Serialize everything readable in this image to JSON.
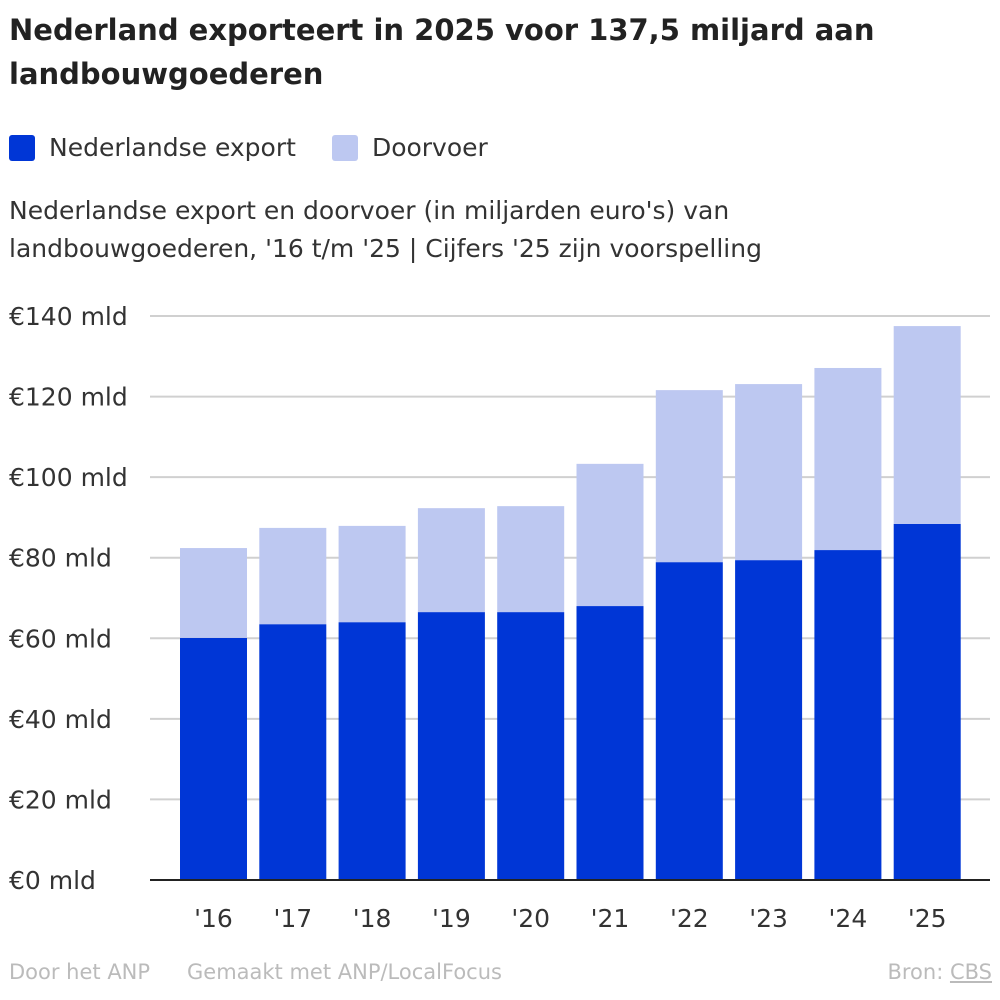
{
  "title": "Nederland exporteert in 2025 voor 137,5 miljard aan landbouwgoederen",
  "subtitle": "Nederlandse export en doorvoer (in miljarden euro's) van landbouwgoederen, '16 t/m '25 | Cijfers '25 zijn voorspelling",
  "footer": {
    "author": "Door het ANP",
    "made_with": "Gemaakt met ANP/LocalFocus",
    "source_label": "Bron:",
    "source": "CBS"
  },
  "chart_data": {
    "type": "bar",
    "stacked": true,
    "title": "Nederland exporteert in 2025 voor 137,5 miljard aan landbouwgoederen",
    "categories": [
      "'16",
      "'17",
      "'18",
      "'19",
      "'20",
      "'21",
      "'22",
      "'23",
      "'24",
      "'25"
    ],
    "series": [
      {
        "name": "Nederlandse export",
        "color": "#0036d6",
        "values": [
          60.1,
          63.5,
          64.0,
          66.5,
          66.5,
          68.0,
          78.9,
          79.4,
          81.9,
          88.4
        ]
      },
      {
        "name": "Doorvoer",
        "color": "#bdc8f1",
        "values": [
          22.3,
          23.9,
          23.9,
          25.8,
          26.3,
          35.3,
          42.7,
          43.7,
          45.2,
          49.1
        ]
      }
    ],
    "ylim": [
      0,
      140
    ],
    "yticks": [
      0,
      20,
      40,
      60,
      80,
      100,
      120,
      140
    ],
    "ytick_labels": [
      "€0 mld",
      "€20 mld",
      "€40 mld",
      "€60 mld",
      "€80 mld",
      "€100 mld",
      "€120 mld",
      "€140 mld"
    ],
    "grid": true,
    "legend": "top-left"
  }
}
